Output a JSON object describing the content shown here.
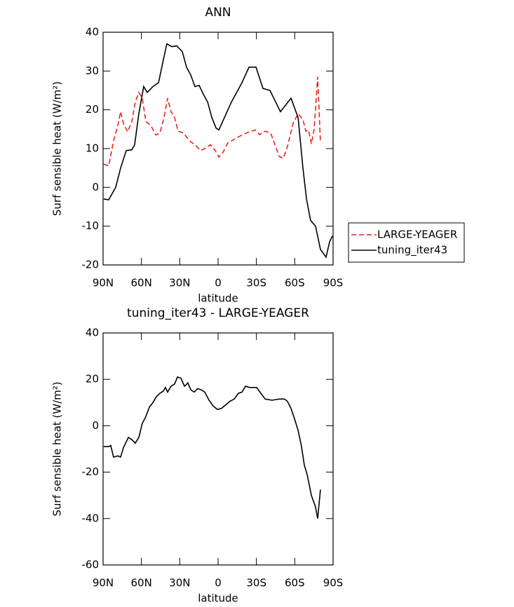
{
  "chart_data": [
    {
      "type": "line",
      "title": "ANN",
      "xlabel": "latitude",
      "ylabel": "Surf sensible heat (W/m²)",
      "xlim": [
        90,
        -90
      ],
      "xticks": [
        {
          "value": 90,
          "label": "90N"
        },
        {
          "value": 60,
          "label": "60N"
        },
        {
          "value": 30,
          "label": "30N"
        },
        0,
        {
          "value": -30,
          "label": "30S"
        },
        {
          "value": -60,
          "label": "60S"
        },
        {
          "value": -90,
          "label": "90S"
        }
      ],
      "ylim": [
        -20,
        40
      ],
      "yticks": [
        -20,
        -10,
        0,
        10,
        20,
        30,
        40
      ],
      "legend": "right",
      "series": [
        {
          "name": "LARGE-YEAGER",
          "color": "#e8251f",
          "linestyle": "dashed",
          "x": [
            89.5,
            85.6,
            81.8,
            78.5,
            76.3,
            74.1,
            70.8,
            67.5,
            64.8,
            62,
            59.3,
            56.5,
            52.7,
            48.8,
            45.5,
            42.3,
            39.5,
            36.8,
            34,
            31.3,
            26.9,
            22.5,
            18.1,
            13.7,
            10.4,
            6,
            2.2,
            -0.6,
            -3.8,
            -7.7,
            -13.2,
            -18.7,
            -24.2,
            -29.1,
            -32.4,
            -36.8,
            -41.2,
            -44.5,
            -47.8,
            -51,
            -54.3,
            -58.7,
            -62.6,
            -66.4,
            -68.6,
            -70.8,
            -73,
            -75.2,
            -77.9,
            -80.1
          ],
          "values": [
            6,
            5.5,
            12,
            16,
            19.5,
            16.5,
            14.3,
            17,
            22,
            24.5,
            23,
            17,
            16,
            13.5,
            14,
            18,
            23,
            19.5,
            18,
            14.5,
            14,
            12,
            11,
            9.5,
            10,
            11,
            9.5,
            7.8,
            9,
            11.5,
            12.5,
            13.5,
            14.3,
            14.8,
            13.6,
            14.5,
            14,
            11,
            8,
            7.5,
            10.5,
            16.5,
            19,
            17.5,
            14.5,
            14.8,
            11.2,
            15,
            28.5,
            11.5
          ]
        },
        {
          "name": "tuning_iter43",
          "color": "#000000",
          "linestyle": "solid",
          "x": [
            89.5,
            85.6,
            80.1,
            76.3,
            71.9,
            67.5,
            65.3,
            62,
            58.2,
            55.4,
            51,
            46.6,
            43.4,
            40.1,
            36.2,
            32.4,
            28,
            24.7,
            21.4,
            18.1,
            14.8,
            11.5,
            8.2,
            4.9,
            1.6,
            -0.6,
            -10.4,
            -18.7,
            -24.2,
            -29.7,
            -35.1,
            -40.6,
            -48.8,
            -57.1,
            -62.6,
            -66.4,
            -69.2,
            -72.4,
            -76.3,
            -80.1,
            -84.5,
            -87.3,
            -89.5
          ],
          "values": [
            -3,
            -3.2,
            0,
            5,
            9.5,
            9.7,
            11,
            19,
            26,
            24.5,
            26,
            27,
            32,
            37,
            36.3,
            36.5,
            35,
            31,
            29,
            26,
            26.3,
            24,
            22,
            18,
            15.3,
            14.8,
            22,
            27,
            31,
            31,
            25.5,
            25,
            19.5,
            23,
            18,
            5,
            -3,
            -8.5,
            -10,
            -16,
            -18,
            -14,
            -12.5
          ]
        }
      ]
    },
    {
      "type": "line",
      "title": "tuning_iter43 - LARGE-YEAGER",
      "xlabel": "latitude",
      "ylabel": "Surf sensible heat (W/m²)",
      "xlim": [
        90,
        -90
      ],
      "xticks": [
        {
          "value": 90,
          "label": "90N"
        },
        {
          "value": 60,
          "label": "60N"
        },
        {
          "value": 30,
          "label": "30N"
        },
        0,
        {
          "value": -30,
          "label": "30S"
        },
        {
          "value": -60,
          "label": "60S"
        },
        {
          "value": -90,
          "label": "90S"
        }
      ],
      "ylim": [
        -60,
        40
      ],
      "yticks": [
        -60,
        -40,
        -20,
        0,
        20,
        40
      ],
      "series": [
        {
          "color": "#000000",
          "linestyle": "solid",
          "x": [
            89.5,
            85.6,
            84,
            81.8,
            78.5,
            76.3,
            74.1,
            70.2,
            67.5,
            64.8,
            62,
            59.3,
            56.5,
            53.8,
            51,
            48.3,
            45.5,
            42.8,
            41.2,
            39.5,
            36.8,
            34,
            31.8,
            29.1,
            26.3,
            23.6,
            21.4,
            18.7,
            15.9,
            13.2,
            10.4,
            7.1,
            3.8,
            0.5,
            -2.7,
            -6,
            -9.3,
            -12.6,
            -15.9,
            -18.7,
            -21.4,
            -24.7,
            -30.2,
            -33.5,
            -36.8,
            -42.3,
            -47.8,
            -51.9,
            -54.3,
            -57.1,
            -59.8,
            -62.6,
            -65.3,
            -67.5,
            -69.7,
            -73,
            -76.3,
            -77.9,
            -80.1
          ],
          "values": [
            -9,
            -9,
            -8.5,
            -13.5,
            -13,
            -13.5,
            -9.5,
            -5,
            -6,
            -7.5,
            -5,
            1,
            4,
            8,
            10,
            12.5,
            14,
            15,
            16.5,
            14.5,
            17,
            18,
            21,
            20.5,
            17,
            18.5,
            15.5,
            14.5,
            16,
            15.5,
            14.5,
            11,
            8.5,
            7,
            7.5,
            9,
            10.5,
            11.5,
            14,
            14.5,
            17,
            16.5,
            16.5,
            14,
            11.5,
            11,
            11.5,
            11.5,
            10.5,
            7.5,
            3,
            -2,
            -9,
            -17,
            -21,
            -30,
            -35,
            -40,
            -27.5
          ]
        }
      ]
    }
  ]
}
